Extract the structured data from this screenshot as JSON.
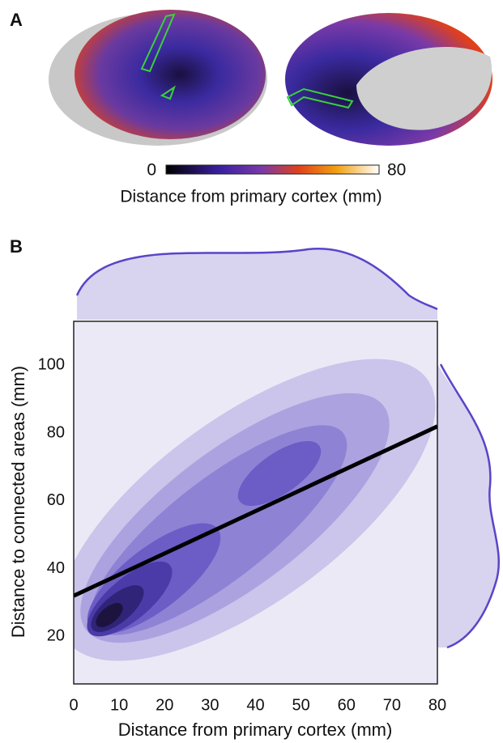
{
  "panel_a": {
    "panel_label": "A",
    "colorbar": {
      "lim": [
        0,
        80
      ],
      "ticks": [
        0,
        80
      ],
      "label": "Distance from primary cortex (mm)"
    }
  },
  "chart_data": {
    "type": "kde",
    "panel_label": "B",
    "x_label": "Distance from primary cortex (mm)",
    "y_label": "Distance to connected areas (mm)",
    "xlim": [
      0,
      80
    ],
    "ylim": [
      6,
      113
    ],
    "xticks": [
      0,
      10,
      20,
      30,
      40,
      50,
      60,
      70,
      80
    ],
    "yticks": [
      20,
      40,
      60,
      80,
      100
    ],
    "series": [
      {
        "color": "#000000",
        "x": [
          0,
          80
        ],
        "values": [
          32,
          82
        ]
      }
    ]
  }
}
